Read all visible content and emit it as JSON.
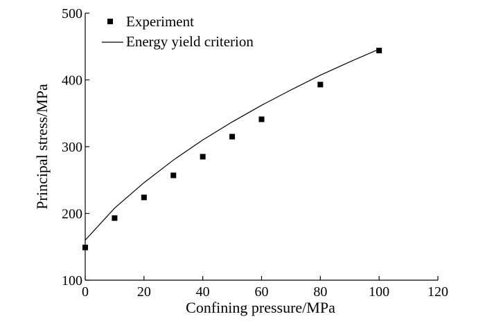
{
  "chart_data": {
    "type": "scatter",
    "xlabel": "Confining pressure/MPa",
    "ylabel": "Principal stress/MPa",
    "xlim": [
      0,
      120
    ],
    "ylim": [
      100,
      500
    ],
    "xticks": [
      "0",
      "20",
      "40",
      "60",
      "80",
      "100",
      "120"
    ],
    "yticks": [
      "100",
      "200",
      "300",
      "400",
      "500"
    ],
    "grid": false,
    "legend_position": "top-left",
    "series": [
      {
        "name": "Experiment",
        "kind": "scatter",
        "marker": "square",
        "color": "#000000",
        "x": [
          0,
          10,
          20,
          30,
          40,
          50,
          60,
          80,
          100
        ],
        "y": [
          149,
          193,
          224,
          257,
          285,
          315,
          341,
          393,
          444
        ]
      },
      {
        "name": "Energy yield criterion",
        "kind": "line",
        "color": "#000000",
        "x": [
          0,
          10,
          20,
          30,
          40,
          50,
          60,
          70,
          80,
          90,
          100
        ],
        "y": [
          160,
          208,
          246,
          280,
          310,
          337,
          362,
          385,
          407,
          427,
          446
        ]
      }
    ]
  }
}
